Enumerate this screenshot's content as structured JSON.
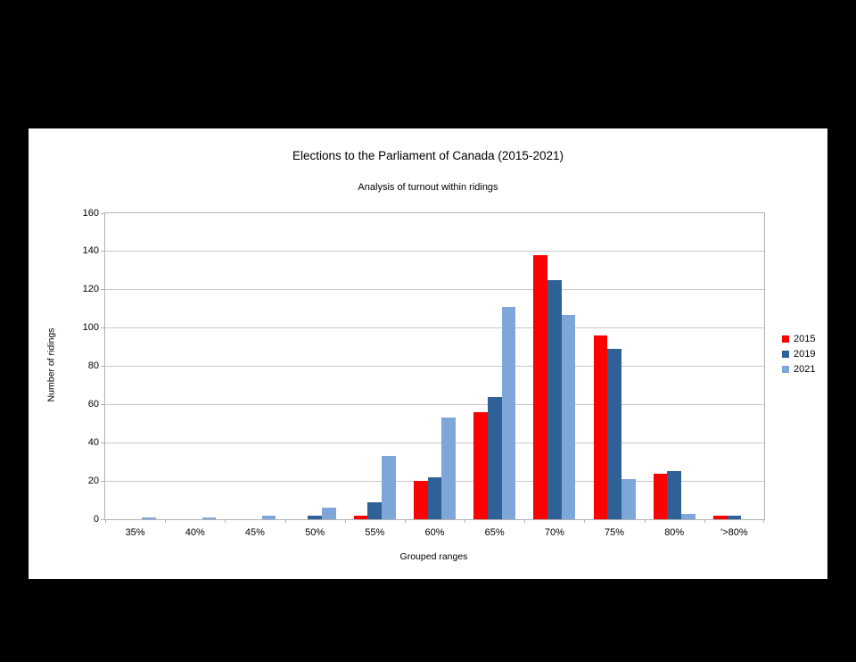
{
  "window": {
    "background_color": "#000000",
    "canvas_color": "#ffffff"
  },
  "chart_data": {
    "type": "bar",
    "title": "Elections to the Parliament of Canada (2015-2021)",
    "subtitle": "Analysis of turnout within ridings",
    "xlabel": "Grouped ranges",
    "ylabel": "Number of ridings",
    "categories": [
      "35%",
      "40%",
      "45%",
      "50%",
      "55%",
      "60%",
      "65%",
      "70%",
      "75%",
      "80%",
      "'>80%"
    ],
    "series": [
      {
        "name": "2015",
        "color": "#ff0000",
        "values": [
          0,
          0,
          0,
          0,
          2,
          20,
          56,
          138,
          96,
          24,
          2
        ]
      },
      {
        "name": "2019",
        "color": "#2e6196",
        "values": [
          0,
          0,
          0,
          2,
          9,
          22,
          64,
          125,
          89,
          25,
          2
        ]
      },
      {
        "name": "2021",
        "color": "#7ea6d8",
        "values": [
          1,
          1,
          2,
          6,
          33,
          53,
          111,
          107,
          21,
          3,
          0
        ]
      }
    ],
    "ylim": [
      0,
      160
    ],
    "ytick_step": 20,
    "grid": true,
    "legend_position": "right"
  },
  "style": {
    "gridline_color": "#c9c9c9",
    "axis_color": "#b2b2b2",
    "text_color": "#000000"
  }
}
